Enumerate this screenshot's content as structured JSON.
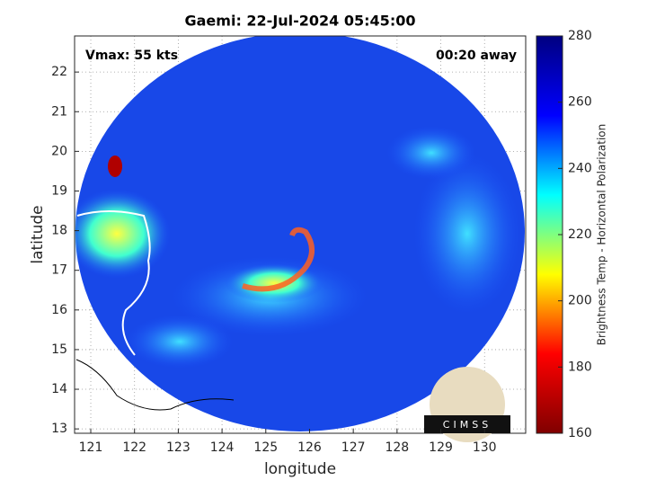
{
  "chart_data": {
    "type": "map",
    "title": "Gaemi: 22-Jul-2024 05:45:00",
    "annotations": [
      "Vmax: 55 kts",
      "00:20 away"
    ],
    "xlabel": "longitude",
    "ylabel": "latitude",
    "xlim": [
      120.63,
      130.94
    ],
    "xticks": [
      121,
      122,
      123,
      124,
      125,
      126,
      127,
      128,
      129,
      130
    ],
    "ylim": [
      12.89,
      22.91
    ],
    "yticks": [
      13,
      14,
      15,
      16,
      17,
      18,
      19,
      20,
      21,
      22
    ],
    "grid": true,
    "colorbar": {
      "label": "Brightness Temp - Horizontal Polarization",
      "lim": [
        160,
        280
      ],
      "ticks": [
        160,
        180,
        200,
        220,
        240,
        260,
        280
      ],
      "colors": [
        "#800000",
        "#ff0000",
        "#ffff00",
        "#00ffff",
        "#0000ff",
        "#000080"
      ]
    },
    "logo": "CIMSS"
  }
}
